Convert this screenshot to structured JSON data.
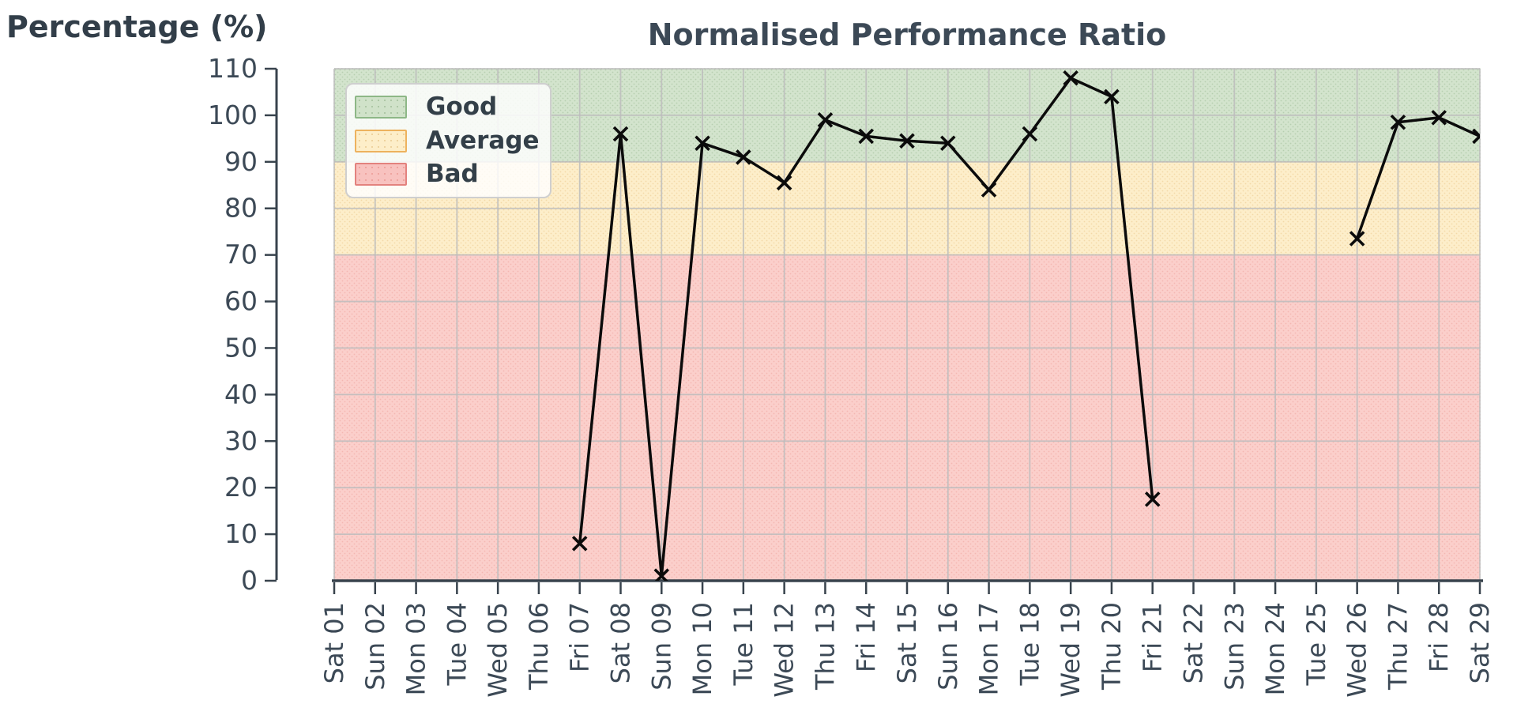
{
  "header": {
    "y_axis_title": "Percentage (%)"
  },
  "legend": {
    "position": "upper left",
    "items": [
      {
        "label": "Good",
        "fill": "#d0e2c9",
        "border": "#8db786"
      },
      {
        "label": "Average",
        "fill": "#fdeec9",
        "border": "#edb25e"
      },
      {
        "label": "Bad",
        "fill": "#f8c2bf",
        "border": "#e3827e"
      }
    ]
  },
  "chart_data": {
    "type": "line",
    "title": "Normalised Performance Ratio",
    "ylabel": "Percentage (%)",
    "xlabel": "",
    "ylim": [
      0,
      110
    ],
    "yticks": [
      0,
      10,
      20,
      30,
      40,
      50,
      60,
      70,
      80,
      90,
      100,
      110
    ],
    "grid": true,
    "legend_position": "upper left",
    "categories": [
      "Sat 01",
      "Sun 02",
      "Mon 03",
      "Tue 04",
      "Wed 05",
      "Thu 06",
      "Fri 07",
      "Sat 08",
      "Sun 09",
      "Mon 10",
      "Tue 11",
      "Wed 12",
      "Thu 13",
      "Fri 14",
      "Sat 15",
      "Sun 16",
      "Mon 17",
      "Tue 18",
      "Wed 19",
      "Thu 20",
      "Fri 21",
      "Sat 22",
      "Sun 23",
      "Mon 24",
      "Tue 25",
      "Wed 26",
      "Thu 27",
      "Fri 28",
      "Sat 29"
    ],
    "series": [
      {
        "name": "Normalised Performance Ratio",
        "marker": "x",
        "color": "#0b0b0b",
        "values": [
          null,
          null,
          null,
          null,
          null,
          null,
          8,
          96,
          1,
          94,
          91,
          85.5,
          99,
          95.5,
          94.5,
          94,
          84,
          96,
          108,
          104,
          17.5,
          null,
          null,
          null,
          null,
          73.5,
          98.5,
          99.5,
          95.5
        ]
      }
    ],
    "bands": [
      {
        "label": "Good",
        "from": 90,
        "to": 110,
        "fill": "#d3e4cd",
        "edge": "#98bf90",
        "dots": "rgba(120,160,110,0.30)"
      },
      {
        "label": "Average",
        "from": 70,
        "to": 90,
        "fill": "#fdeeca",
        "edge": "#eab45e",
        "dots": "rgba(220,170,90,0.30)"
      },
      {
        "label": "Bad",
        "from": 0,
        "to": 70,
        "fill": "#fbcfcb",
        "edge": "#e5847f",
        "dots": "rgba(230,130,120,0.30)"
      }
    ],
    "colors": {
      "grid": "#bdbdbd",
      "axis": "#38434d",
      "tick_text": "#3c4956",
      "line": "#0b0b0b"
    }
  }
}
